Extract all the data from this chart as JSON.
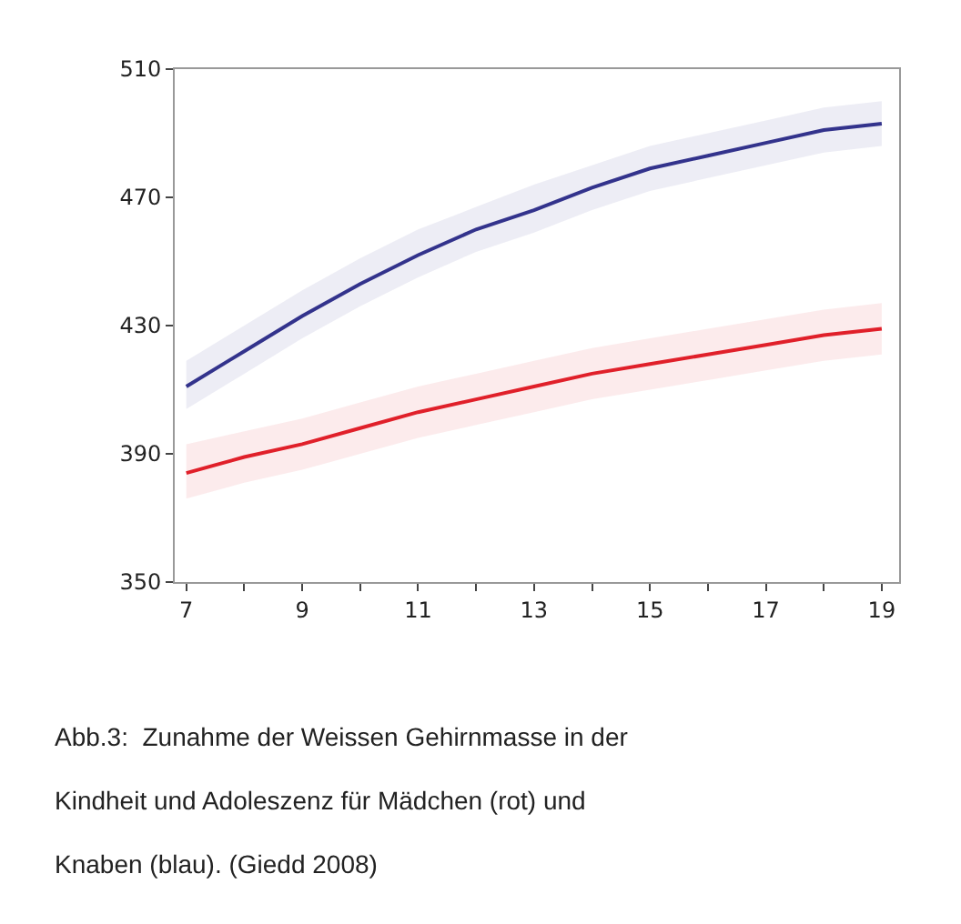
{
  "chart_data": {
    "type": "line",
    "x": [
      7,
      8,
      9,
      10,
      11,
      12,
      13,
      14,
      15,
      16,
      17,
      18,
      19
    ],
    "series": [
      {
        "color": "#33338c",
        "values": [
          411,
          422,
          433,
          443,
          452,
          460,
          466,
          473,
          479,
          483,
          487,
          491,
          493
        ],
        "lower": [
          404,
          415,
          426,
          436,
          445,
          453,
          459,
          466,
          472,
          476,
          480,
          484,
          486
        ],
        "upper": [
          419,
          430,
          441,
          451,
          460,
          467,
          474,
          480,
          486,
          490,
          494,
          498,
          500
        ]
      },
      {
        "color": "#e0202a",
        "values": [
          384,
          389,
          393,
          398,
          403,
          407,
          411,
          415,
          418,
          421,
          424,
          427,
          429
        ],
        "lower": [
          376,
          381,
          385,
          390,
          395,
          399,
          403,
          407,
          410,
          413,
          416,
          419,
          421
        ],
        "upper": [
          393,
          397,
          401,
          406,
          411,
          415,
          419,
          423,
          426,
          429,
          432,
          435,
          437
        ]
      }
    ],
    "xlim": [
      6.8,
      19.3
    ],
    "xticks": [
      7,
      {
        "value": 8,
        "label": null
      },
      9,
      {
        "value": 10,
        "label": null
      },
      11,
      {
        "value": 12,
        "label": null
      },
      13,
      {
        "value": 14,
        "label": null
      },
      15,
      {
        "value": 16,
        "label": null
      },
      17,
      {
        "value": 18,
        "label": null
      },
      19
    ],
    "ylim": [
      350,
      510
    ],
    "yticks": [
      350,
      390,
      430,
      470,
      510
    ],
    "marker": "none",
    "line_style": "solid",
    "annotations": [
      "Abb.3:  Zunahme der Weissen Gehirnmasse in der",
      "Kindheit und Adoleszenz für Mädchen (rot) und",
      "Knaben (blau). (Giedd 2008)"
    ]
  }
}
